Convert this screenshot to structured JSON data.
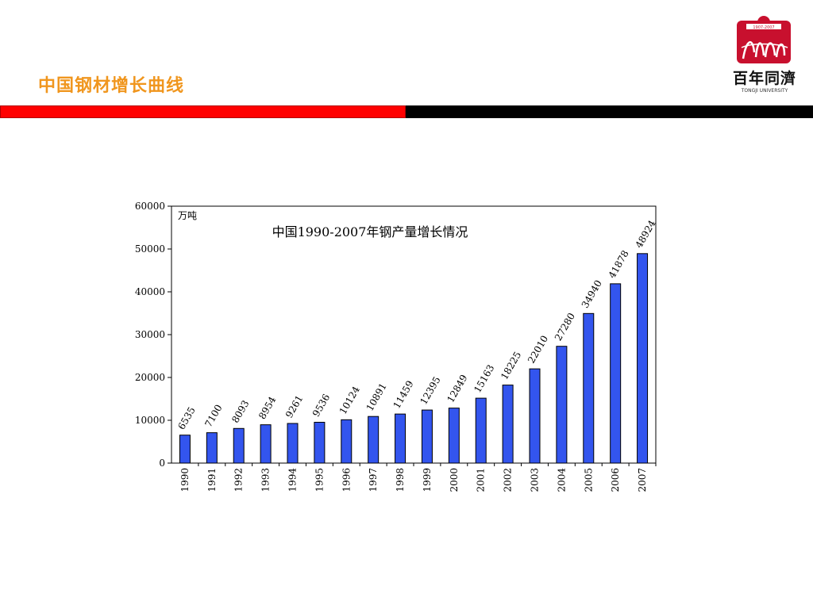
{
  "slide": {
    "title": "中国钢材增长曲线"
  },
  "logo": {
    "years": "1907-2007",
    "name_cn": "百年同濟",
    "name_en": "TONGJI UNIVERSITY",
    "emblem_color": "#c8102e"
  },
  "colors": {
    "title": "#f0961e",
    "band_red": "#ff0000",
    "band_black": "#000000",
    "bar_fill": "#3355ee"
  },
  "chart_data": {
    "type": "bar",
    "title": "中国1990-2007年钢产量增长情况",
    "ylabel": "万吨",
    "xlabel": "",
    "ylim": [
      0,
      60000
    ],
    "yticks": [
      "0",
      "10000",
      "20000",
      "30000",
      "40000",
      "50000",
      "60000"
    ],
    "categories": [
      "1990",
      "1991",
      "1992",
      "1993",
      "1994",
      "1995",
      "1996",
      "1997",
      "1998",
      "1999",
      "2000",
      "2001",
      "2002",
      "2003",
      "2004",
      "2005",
      "2006",
      "2007"
    ],
    "values": [
      6535,
      7100,
      8093,
      8954,
      9261,
      9536,
      10124,
      10891,
      11459,
      12395,
      12849,
      15163,
      18225,
      22010,
      27280,
      34940,
      41878,
      48924
    ],
    "data_labels": [
      "6535",
      "7100",
      "8093",
      "8954",
      "9261",
      "9536",
      "10124",
      "10891",
      "11459",
      "12395",
      "12849",
      "15163",
      "18225",
      "22010",
      "27280",
      "34940",
      "41878",
      "48924"
    ],
    "grid": false,
    "legend": "none"
  }
}
